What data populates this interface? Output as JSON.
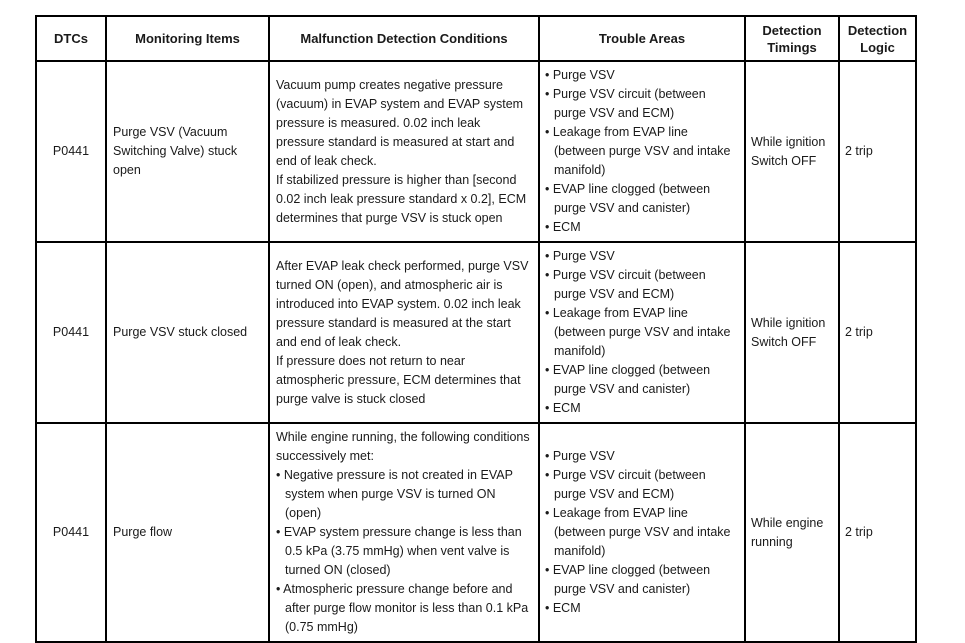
{
  "table": {
    "headers": [
      "DTCs",
      "Monitoring Items",
      "Malfunction Detection Conditions",
      "Trouble Areas",
      "Detection Timings",
      "Detection Logic"
    ],
    "rows": [
      {
        "dtc": "P0441",
        "monitoring_item": "Purge VSV (Vacuum Switching Valve) stuck open",
        "conditions": [
          {
            "bullet": false,
            "text": "Vacuum pump creates negative pressure (vacuum) in EVAP system and EVAP system pressure is measured. 0.02 inch leak pressure standard is measured at start and end of leak check."
          },
          {
            "bullet": false,
            "text": "If stabilized pressure is higher than [second 0.02 inch leak pressure standard x 0.2], ECM determines that purge VSV is stuck open"
          }
        ],
        "trouble_areas": [
          "Purge VSV",
          "Purge VSV circuit (between purge VSV and ECM)",
          "Leakage from EVAP line (between purge VSV and intake manifold)",
          "EVAP line clogged (between purge VSV and canister)",
          "ECM"
        ],
        "detection_timing": "While ignition Switch OFF",
        "detection_logic": "2 trip"
      },
      {
        "dtc": "P0441",
        "monitoring_item": "Purge VSV stuck closed",
        "conditions": [
          {
            "bullet": false,
            "text": "After EVAP leak check performed, purge VSV turned ON (open), and atmospheric air is introduced into EVAP system. 0.02 inch leak pressure standard is measured at the start and end of leak check."
          },
          {
            "bullet": false,
            "text": "If pressure does not return to near atmospheric pressure, ECM determines that purge valve is stuck closed"
          }
        ],
        "trouble_areas": [
          "Purge VSV",
          "Purge VSV circuit (between purge VSV and ECM)",
          "Leakage from EVAP line (between purge VSV and intake manifold)",
          "EVAP line clogged (between purge VSV and canister)",
          "ECM"
        ],
        "detection_timing": "While ignition Switch OFF",
        "detection_logic": "2 trip"
      },
      {
        "dtc": "P0441",
        "monitoring_item": "Purge flow",
        "conditions": [
          {
            "bullet": false,
            "text": "While engine running, the following conditions successively met:"
          },
          {
            "bullet": true,
            "text": "Negative pressure is not created in EVAP system when purge VSV is turned ON (open)"
          },
          {
            "bullet": true,
            "text": "EVAP system pressure change is less than 0.5 kPa (3.75 mmHg) when vent valve is turned ON (closed)"
          },
          {
            "bullet": true,
            "text": "Atmospheric pressure change before and after purge flow monitor is less than 0.1 kPa (0.75 mmHg)"
          }
        ],
        "trouble_areas": [
          "Purge VSV",
          "Purge VSV circuit (between purge VSV and ECM)",
          "Leakage from EVAP line (between purge VSV and intake manifold)",
          "EVAP line clogged (between purge VSV and canister)",
          "ECM"
        ],
        "detection_timing": "While engine running",
        "detection_logic": "2 trip"
      }
    ]
  }
}
